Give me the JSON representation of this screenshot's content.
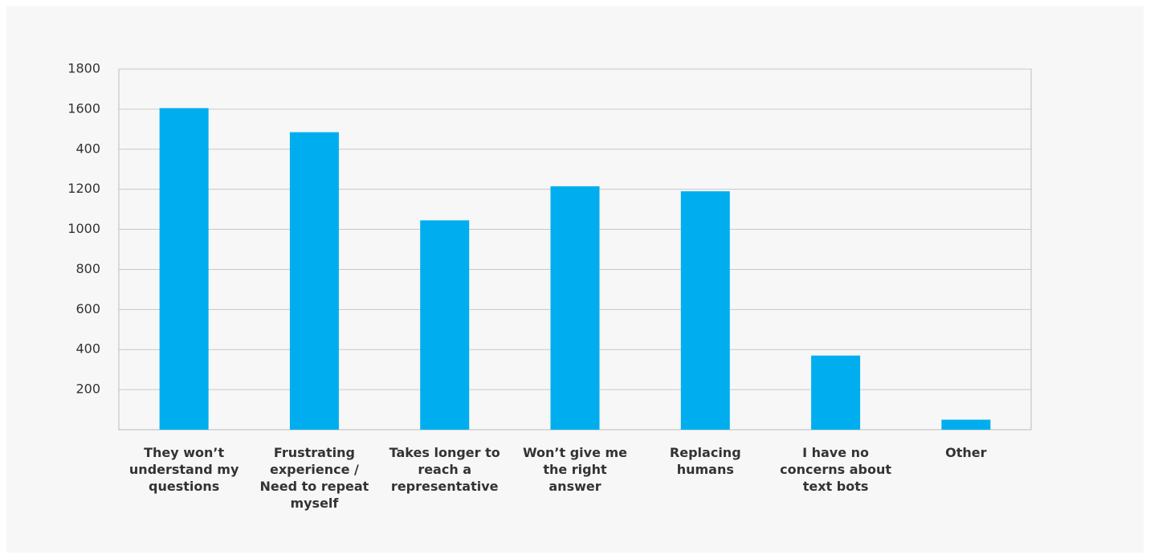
{
  "chart_data": {
    "type": "bar",
    "categories": [
      "They won’t understand my questions",
      "Frustrating experience / Need to repeat myself",
      "Takes longer to reach a representative",
      "Won’t give me the right answer",
      "Replacing humans",
      "I have no concerns about text bots",
      "Other"
    ],
    "values": [
      1605,
      1485,
      1045,
      1215,
      1190,
      370,
      50
    ],
    "color": "#00aeef",
    "ylim": [
      0,
      1800
    ],
    "yticks": [
      200,
      400,
      600,
      800,
      1000,
      1200,
      {
        "value": 1400,
        "label": "400"
      },
      1600,
      1800
    ],
    "grid": true
  }
}
